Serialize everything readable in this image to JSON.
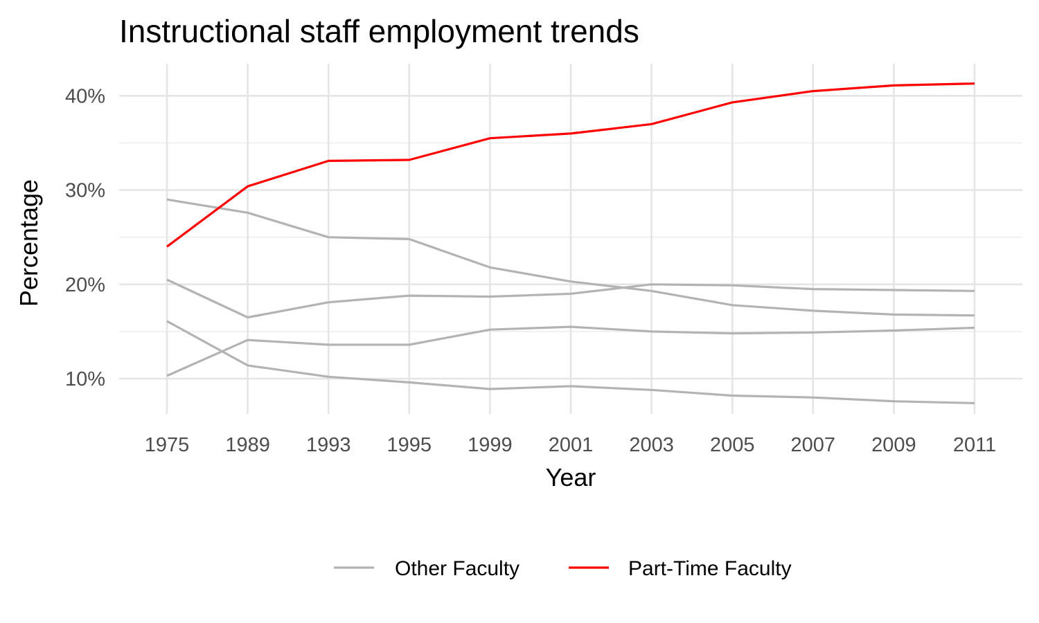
{
  "chart_data": {
    "type": "line",
    "title": "Instructional staff employment trends",
    "xlabel": "Year",
    "ylabel": "Percentage",
    "categories": [
      "1975",
      "1989",
      "1993",
      "1995",
      "1999",
      "2001",
      "2003",
      "2005",
      "2007",
      "2009",
      "2011"
    ],
    "ylim": [
      5.5,
      43.5
    ],
    "yticks": [
      10,
      20,
      30,
      40
    ],
    "ytick_labels": [
      "10%",
      "20%",
      "30%",
      "40%"
    ],
    "grid": true,
    "legend_position": "bottom",
    "legend": [
      {
        "label": "Other Faculty",
        "color": "#b3b3b3"
      },
      {
        "label": "Part-Time Faculty",
        "color": "#ff0000"
      }
    ],
    "series": [
      {
        "group": "Other Faculty",
        "color": "#b3b3b3",
        "values": [
          29.0,
          27.6,
          25.0,
          24.8,
          21.8,
          20.3,
          19.3,
          17.8,
          17.2,
          16.8,
          16.7
        ]
      },
      {
        "group": "Other Faculty",
        "color": "#b3b3b3",
        "values": [
          20.5,
          16.5,
          18.1,
          18.8,
          18.7,
          19.0,
          20.0,
          19.9,
          19.5,
          19.4,
          19.3
        ]
      },
      {
        "group": "Other Faculty",
        "color": "#b3b3b3",
        "values": [
          10.3,
          14.1,
          13.6,
          13.6,
          15.2,
          15.5,
          15.0,
          14.8,
          14.9,
          15.1,
          15.4
        ]
      },
      {
        "group": "Other Faculty",
        "color": "#b3b3b3",
        "values": [
          16.1,
          11.4,
          10.2,
          9.6,
          8.9,
          9.2,
          8.8,
          8.2,
          8.0,
          7.6,
          7.4
        ]
      },
      {
        "group": "Part-Time Faculty",
        "color": "#ff0000",
        "values": [
          24.0,
          30.4,
          33.1,
          33.2,
          35.5,
          36.0,
          37.0,
          39.3,
          40.5,
          41.1,
          41.3
        ]
      }
    ]
  }
}
